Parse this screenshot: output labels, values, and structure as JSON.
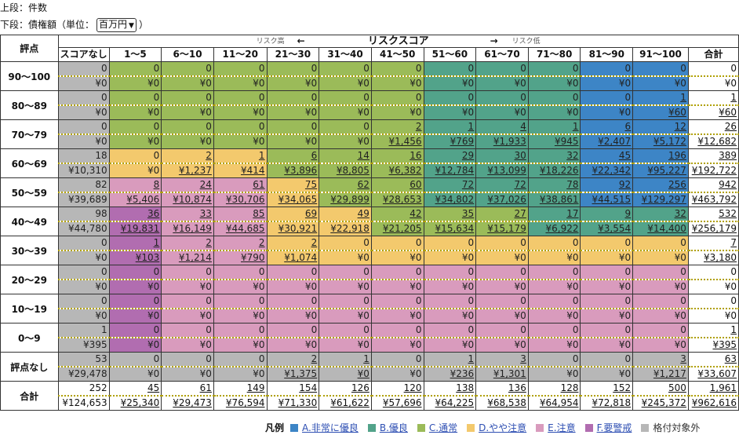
{
  "header": {
    "line1": "上段：件数",
    "line2_prefix": "下段：債権額（単位：",
    "unit_selected": "百万円",
    "line2_suffix": "）"
  },
  "table": {
    "rating_header": "評点",
    "risk_title": "リスクスコア",
    "risk_high": "リスク高",
    "risk_low": "リスク低",
    "arrow_left": "←",
    "arrow_right": "→",
    "columns": [
      "スコアなし",
      "1～5",
      "6～10",
      "11～20",
      "21～30",
      "31～40",
      "41～50",
      "51～60",
      "61～70",
      "71～80",
      "81～90",
      "91～100",
      "合計"
    ],
    "rows": [
      {
        "label": "90～100",
        "counts": [
          "0",
          "0",
          "0",
          "0",
          "0",
          "0",
          "0",
          "0",
          "0",
          "0",
          "0",
          "0",
          "0"
        ],
        "amounts": [
          "¥0",
          "¥0",
          "¥0",
          "¥0",
          "¥0",
          "¥0",
          "¥0",
          "¥0",
          "¥0",
          "¥0",
          "¥0",
          "¥0",
          "¥0"
        ],
        "levels": [
          "G",
          "C",
          "C",
          "C",
          "C",
          "C",
          "C",
          "B",
          "B",
          "B",
          "A",
          "A",
          "W"
        ]
      },
      {
        "label": "80～89",
        "counts": [
          "0",
          "0",
          "0",
          "0",
          "0",
          "0",
          "0",
          "0",
          "0",
          "0",
          "0",
          "1",
          "1"
        ],
        "amounts": [
          "¥0",
          "¥0",
          "¥0",
          "¥0",
          "¥0",
          "¥0",
          "¥0",
          "¥0",
          "¥0",
          "¥0",
          "¥0",
          "¥60",
          "¥60"
        ],
        "levels": [
          "G",
          "C",
          "C",
          "C",
          "C",
          "C",
          "C",
          "B",
          "B",
          "B",
          "A",
          "A",
          "W"
        ]
      },
      {
        "label": "70～79",
        "counts": [
          "0",
          "0",
          "0",
          "0",
          "0",
          "0",
          "2",
          "1",
          "4",
          "1",
          "6",
          "12",
          "26"
        ],
        "amounts": [
          "¥0",
          "¥0",
          "¥0",
          "¥0",
          "¥0",
          "¥0",
          "¥1,456",
          "¥769",
          "¥1,933",
          "¥945",
          "¥2,407",
          "¥5,172",
          "¥12,682"
        ],
        "levels": [
          "G",
          "C",
          "C",
          "C",
          "C",
          "C",
          "C",
          "B",
          "B",
          "B",
          "A",
          "A",
          "W"
        ]
      },
      {
        "label": "60～69",
        "counts": [
          "18",
          "0",
          "2",
          "1",
          "6",
          "14",
          "16",
          "29",
          "30",
          "32",
          "45",
          "196",
          "389"
        ],
        "amounts": [
          "¥10,310",
          "¥0",
          "¥1,237",
          "¥414",
          "¥3,896",
          "¥8,805",
          "¥6,382",
          "¥12,784",
          "¥13,099",
          "¥18,226",
          "¥22,342",
          "¥95,227",
          "¥192,722"
        ],
        "levels": [
          "G",
          "D",
          "D",
          "D",
          "C",
          "C",
          "C",
          "B",
          "B",
          "B",
          "A",
          "A",
          "W"
        ]
      },
      {
        "label": "50～59",
        "counts": [
          "82",
          "8",
          "24",
          "61",
          "75",
          "62",
          "60",
          "72",
          "72",
          "78",
          "92",
          "256",
          "942"
        ],
        "amounts": [
          "¥39,689",
          "¥5,406",
          "¥10,874",
          "¥30,706",
          "¥34,065",
          "¥29,899",
          "¥28,653",
          "¥34,802",
          "¥37,026",
          "¥38,861",
          "¥44,515",
          "¥129,297",
          "¥463,792"
        ],
        "levels": [
          "G",
          "E",
          "E",
          "E",
          "D",
          "C",
          "C",
          "B",
          "B",
          "B",
          "A",
          "A",
          "W"
        ]
      },
      {
        "label": "40～49",
        "counts": [
          "98",
          "36",
          "33",
          "85",
          "69",
          "49",
          "42",
          "35",
          "27",
          "17",
          "9",
          "32",
          "532"
        ],
        "amounts": [
          "¥44,780",
          "¥19,831",
          "¥16,149",
          "¥44,685",
          "¥30,921",
          "¥22,918",
          "¥21,205",
          "¥15,634",
          "¥15,179",
          "¥6,922",
          "¥3,554",
          "¥14,400",
          "¥256,179"
        ],
        "levels": [
          "G",
          "F",
          "E",
          "E",
          "D",
          "D",
          "C",
          "C",
          "C",
          "B",
          "B",
          "B",
          "W"
        ]
      },
      {
        "label": "30～39",
        "counts": [
          "0",
          "1",
          "2",
          "2",
          "2",
          "0",
          "0",
          "0",
          "0",
          "0",
          "0",
          "0",
          "7"
        ],
        "amounts": [
          "¥0",
          "¥103",
          "¥1,214",
          "¥790",
          "¥1,074",
          "¥0",
          "¥0",
          "¥0",
          "¥0",
          "¥0",
          "¥0",
          "¥0",
          "¥3,180"
        ],
        "levels": [
          "G",
          "F",
          "E",
          "E",
          "D",
          "D",
          "D",
          "D",
          "D",
          "D",
          "D",
          "D",
          "W"
        ]
      },
      {
        "label": "20～29",
        "counts": [
          "0",
          "0",
          "0",
          "0",
          "0",
          "0",
          "0",
          "0",
          "0",
          "0",
          "0",
          "0",
          "0"
        ],
        "amounts": [
          "¥0",
          "¥0",
          "¥0",
          "¥0",
          "¥0",
          "¥0",
          "¥0",
          "¥0",
          "¥0",
          "¥0",
          "¥0",
          "¥0",
          "¥0"
        ],
        "levels": [
          "G",
          "F",
          "E",
          "E",
          "E",
          "E",
          "E",
          "E",
          "E",
          "E",
          "E",
          "E",
          "W"
        ]
      },
      {
        "label": "10～19",
        "counts": [
          "0",
          "0",
          "0",
          "0",
          "0",
          "0",
          "0",
          "0",
          "0",
          "0",
          "0",
          "0",
          "0"
        ],
        "amounts": [
          "¥0",
          "¥0",
          "¥0",
          "¥0",
          "¥0",
          "¥0",
          "¥0",
          "¥0",
          "¥0",
          "¥0",
          "¥0",
          "¥0",
          "¥0"
        ],
        "levels": [
          "G",
          "F",
          "E",
          "E",
          "E",
          "E",
          "E",
          "E",
          "E",
          "E",
          "E",
          "E",
          "W"
        ]
      },
      {
        "label": "0～9",
        "counts": [
          "1",
          "0",
          "0",
          "0",
          "0",
          "0",
          "0",
          "0",
          "0",
          "0",
          "0",
          "0",
          "1"
        ],
        "amounts": [
          "¥395",
          "¥0",
          "¥0",
          "¥0",
          "¥0",
          "¥0",
          "¥0",
          "¥0",
          "¥0",
          "¥0",
          "¥0",
          "¥0",
          "¥395"
        ],
        "levels": [
          "G",
          "F",
          "E",
          "E",
          "E",
          "E",
          "E",
          "E",
          "E",
          "E",
          "E",
          "E",
          "W"
        ]
      },
      {
        "label": "評点なし",
        "counts": [
          "53",
          "0",
          "0",
          "0",
          "2",
          "1",
          "0",
          "1",
          "3",
          "0",
          "0",
          "3",
          "63"
        ],
        "amounts": [
          "¥29,478",
          "¥0",
          "¥0",
          "¥0",
          "¥1,375",
          "¥0",
          "¥0",
          "¥236",
          "¥1,301",
          "¥0",
          "¥0",
          "¥1,217",
          "¥33,607"
        ],
        "levels": [
          "G",
          "G",
          "G",
          "G",
          "G",
          "G",
          "G",
          "G",
          "G",
          "G",
          "G",
          "G",
          "W"
        ]
      },
      {
        "label": "合計",
        "counts": [
          "252",
          "45",
          "61",
          "149",
          "154",
          "126",
          "120",
          "138",
          "136",
          "128",
          "152",
          "500",
          "1,961"
        ],
        "amounts": [
          "¥124,653",
          "¥25,340",
          "¥29,473",
          "¥76,594",
          "¥71,330",
          "¥61,622",
          "¥57,696",
          "¥64,225",
          "¥68,538",
          "¥64,954",
          "¥72,818",
          "¥245,372",
          "¥962,616"
        ],
        "levels": [
          "W",
          "W",
          "W",
          "W",
          "W",
          "W",
          "W",
          "W",
          "W",
          "W",
          "W",
          "W",
          "W"
        ]
      }
    ]
  },
  "colors": {
    "A": "#3d85c6",
    "B": "#52a38a",
    "C": "#9bbb59",
    "D": "#f3c96d",
    "E": "#d99bbd",
    "F": "#b16db0",
    "G": "#b7b7b7"
  },
  "legend": {
    "title": "凡例",
    "items": [
      {
        "key": "A",
        "label": "A.非常に優良",
        "link": true
      },
      {
        "key": "B",
        "label": "B.優良",
        "link": true
      },
      {
        "key": "C",
        "label": "C.通常",
        "link": true
      },
      {
        "key": "D",
        "label": "D.やや注意",
        "link": true
      },
      {
        "key": "E",
        "label": "E.注意",
        "link": true
      },
      {
        "key": "F",
        "label": "F.要警戒",
        "link": true
      },
      {
        "key": "G",
        "label": "格付対象外",
        "link": false
      }
    ]
  }
}
